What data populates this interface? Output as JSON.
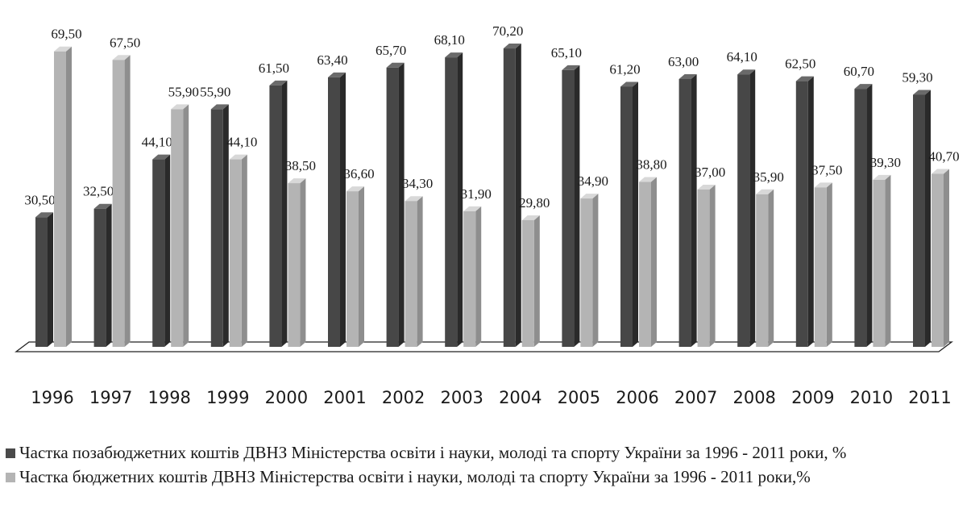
{
  "chart_data": {
    "type": "bar",
    "style": "3d-clustered-column",
    "categories": [
      "1996",
      "1997",
      "1998",
      "1999",
      "2000",
      "2001",
      "2002",
      "2003",
      "2004",
      "2005",
      "2006",
      "2007",
      "2008",
      "2009",
      "2010",
      "2011"
    ],
    "series": [
      {
        "name": "Частка позабюджетних коштів ДВНЗ Міністерства освіти і науки, молоді та спорту України за 1996 - 2011 роки, %",
        "color": "#4a4a4a",
        "values": [
          30.5,
          32.5,
          44.1,
          55.9,
          61.5,
          63.4,
          65.7,
          68.1,
          70.2,
          65.1,
          61.2,
          63.0,
          64.1,
          62.5,
          60.7,
          59.3
        ],
        "labels": [
          "30,50",
          "32,50",
          "44,10",
          "55,90",
          "61,50",
          "63,40",
          "65,70",
          "68,10",
          "70,20",
          "65,10",
          "61,20",
          "63,00",
          "64,10",
          "62,50",
          "60,70",
          "59,30"
        ]
      },
      {
        "name": "Частка бюджетних коштів ДВНЗ Міністерства освіти і науки, молоді та спорту України за 1996 - 2011 роки,%",
        "color": "#b4b4b4",
        "values": [
          69.5,
          67.5,
          55.9,
          44.1,
          38.5,
          36.6,
          34.3,
          31.9,
          29.8,
          34.9,
          38.8,
          37.0,
          35.9,
          37.5,
          39.3,
          40.7
        ],
        "labels": [
          "69,50",
          "67,50",
          "55,90",
          "44,10",
          "38,50",
          "36,60",
          "34,30",
          "31,90",
          "29,80",
          "34,90",
          "38,80",
          "37,00",
          "35,90",
          "37,50",
          "39,30",
          "40,70"
        ]
      }
    ],
    "ylim": [
      0,
      72
    ],
    "grid": false,
    "legend_position": "bottom",
    "title": "",
    "xlabel": "",
    "ylabel": ""
  },
  "legend": {
    "items": [
      {
        "label": "Частка позабюджетних коштів ДВНЗ Міністерства освіти і науки, молоді та спорту України за 1996 - 2011 роки, %"
      },
      {
        "label": "Частка бюджетних коштів ДВНЗ Міністерства освіти і науки, молоді та спорту України за 1996 - 2011 роки,%"
      }
    ]
  }
}
